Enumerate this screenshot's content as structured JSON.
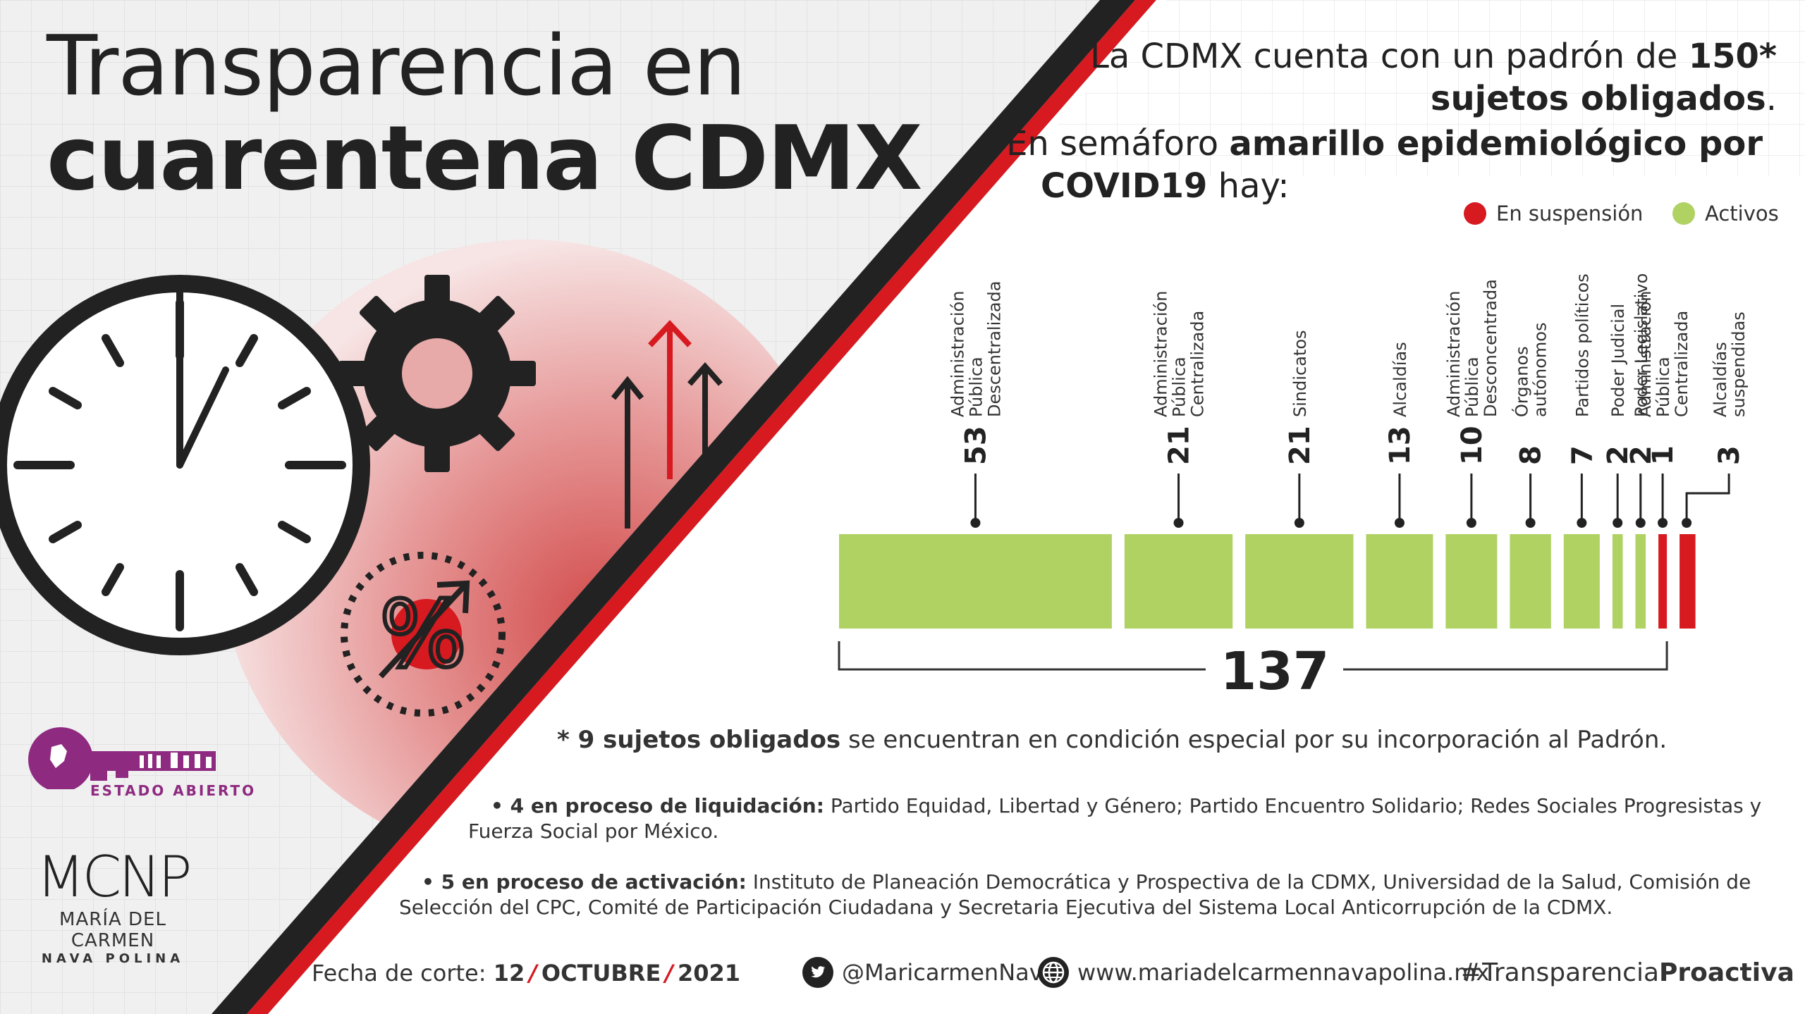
{
  "title": {
    "line1": "Transparencia en",
    "line2": "cuarentena CDMX"
  },
  "intro": {
    "l1_pre": "La CDMX cuenta con un padrón de ",
    "l1_bold": "150*",
    "l2_bold": "sujetos obligados",
    "l2_post": ".",
    "l3_pre": "En semáforo ",
    "l3_bold": "amarillo epidemiológico por",
    "l4_bold": "COVID19",
    "l4_post": " hay:"
  },
  "legend": {
    "suspended": "En suspensión",
    "active": "Activos"
  },
  "colors": {
    "active": "#afd263",
    "suspended": "#d71920",
    "dark": "#222222"
  },
  "chart_data": {
    "type": "bar",
    "orientation": "stacked-horizontal",
    "categories": [
      "Administración Pública Descentralizada",
      "Administración Pública Centralizada",
      "Sindicatos",
      "Alcaldías",
      "Administración Pública Desconcentrada",
      "Órganos autónomos",
      "Partidos políticos",
      "Poder Judicial",
      "Poder Legislativo",
      "Administración Pública Centralizada",
      "Alcaldías suspendidas"
    ],
    "label_lines": [
      [
        "Administración",
        "Pública",
        "Descentralizada"
      ],
      [
        "Administración",
        "Pública",
        "Centralizada"
      ],
      [
        "Sindicatos"
      ],
      [
        "Alcaldías"
      ],
      [
        "Administración",
        "Pública",
        "Desconcentrada"
      ],
      [
        "Órganos",
        "autónomos"
      ],
      [
        "Partidos políticos"
      ],
      [
        "Poder Judicial"
      ],
      [
        "Poder Legislativo"
      ],
      [
        "Administración",
        "Pública",
        "Centralizada"
      ],
      [
        "Alcaldías",
        "suspendidas"
      ]
    ],
    "values": [
      53,
      21,
      21,
      13,
      10,
      8,
      7,
      2,
      2,
      1,
      3
    ],
    "status": [
      "active",
      "active",
      "active",
      "active",
      "active",
      "active",
      "active",
      "active",
      "active",
      "suspended",
      "suspended"
    ],
    "total_label": "137",
    "legend_placement": "top-right"
  },
  "notes": {
    "main_bold": "* 9 sujetos obligados",
    "main_rest": " se encuentran en condición especial por su incorporación al Padrón.",
    "liq_bold": "• 4 en proceso de liquidación:",
    "liq_rest": " Partido Equidad, Libertad y Género; Partido Encuentro Solidario; Redes Sociales Progresistas y Fuerza Social por México.",
    "act_bold": "• 5 en proceso de activación:",
    "act_rest": " Instituto de Planeación Democrática y Prospectiva de la CDMX, Universidad de la Salud, Comisión de Selección del CPC, Comité de Participación Ciudadana y Secretaria Ejecutiva del Sistema Local Anticorrupción de la CDMX."
  },
  "footer": {
    "date_label": "Fecha de corte:",
    "day": "12",
    "month": "OCTUBRE",
    "year": "2021",
    "twitter": "@MaricarmenNava",
    "website": "www.mariadelcarmennavapolina.mx",
    "hashtag_pre": "#Transparencia",
    "hashtag_bold": "Proactiva"
  },
  "brand": {
    "estado_abierto": "ESTADO ABIERTO",
    "monogram": "MCNP",
    "name": "MARÍA DEL CARMEN",
    "surname": "NAVA POLINA"
  },
  "icons": [
    "clock-icon",
    "gear-icon",
    "percent-icon",
    "arrows-up-icon",
    "twitter-icon",
    "globe-icon",
    "key-logo-icon"
  ]
}
